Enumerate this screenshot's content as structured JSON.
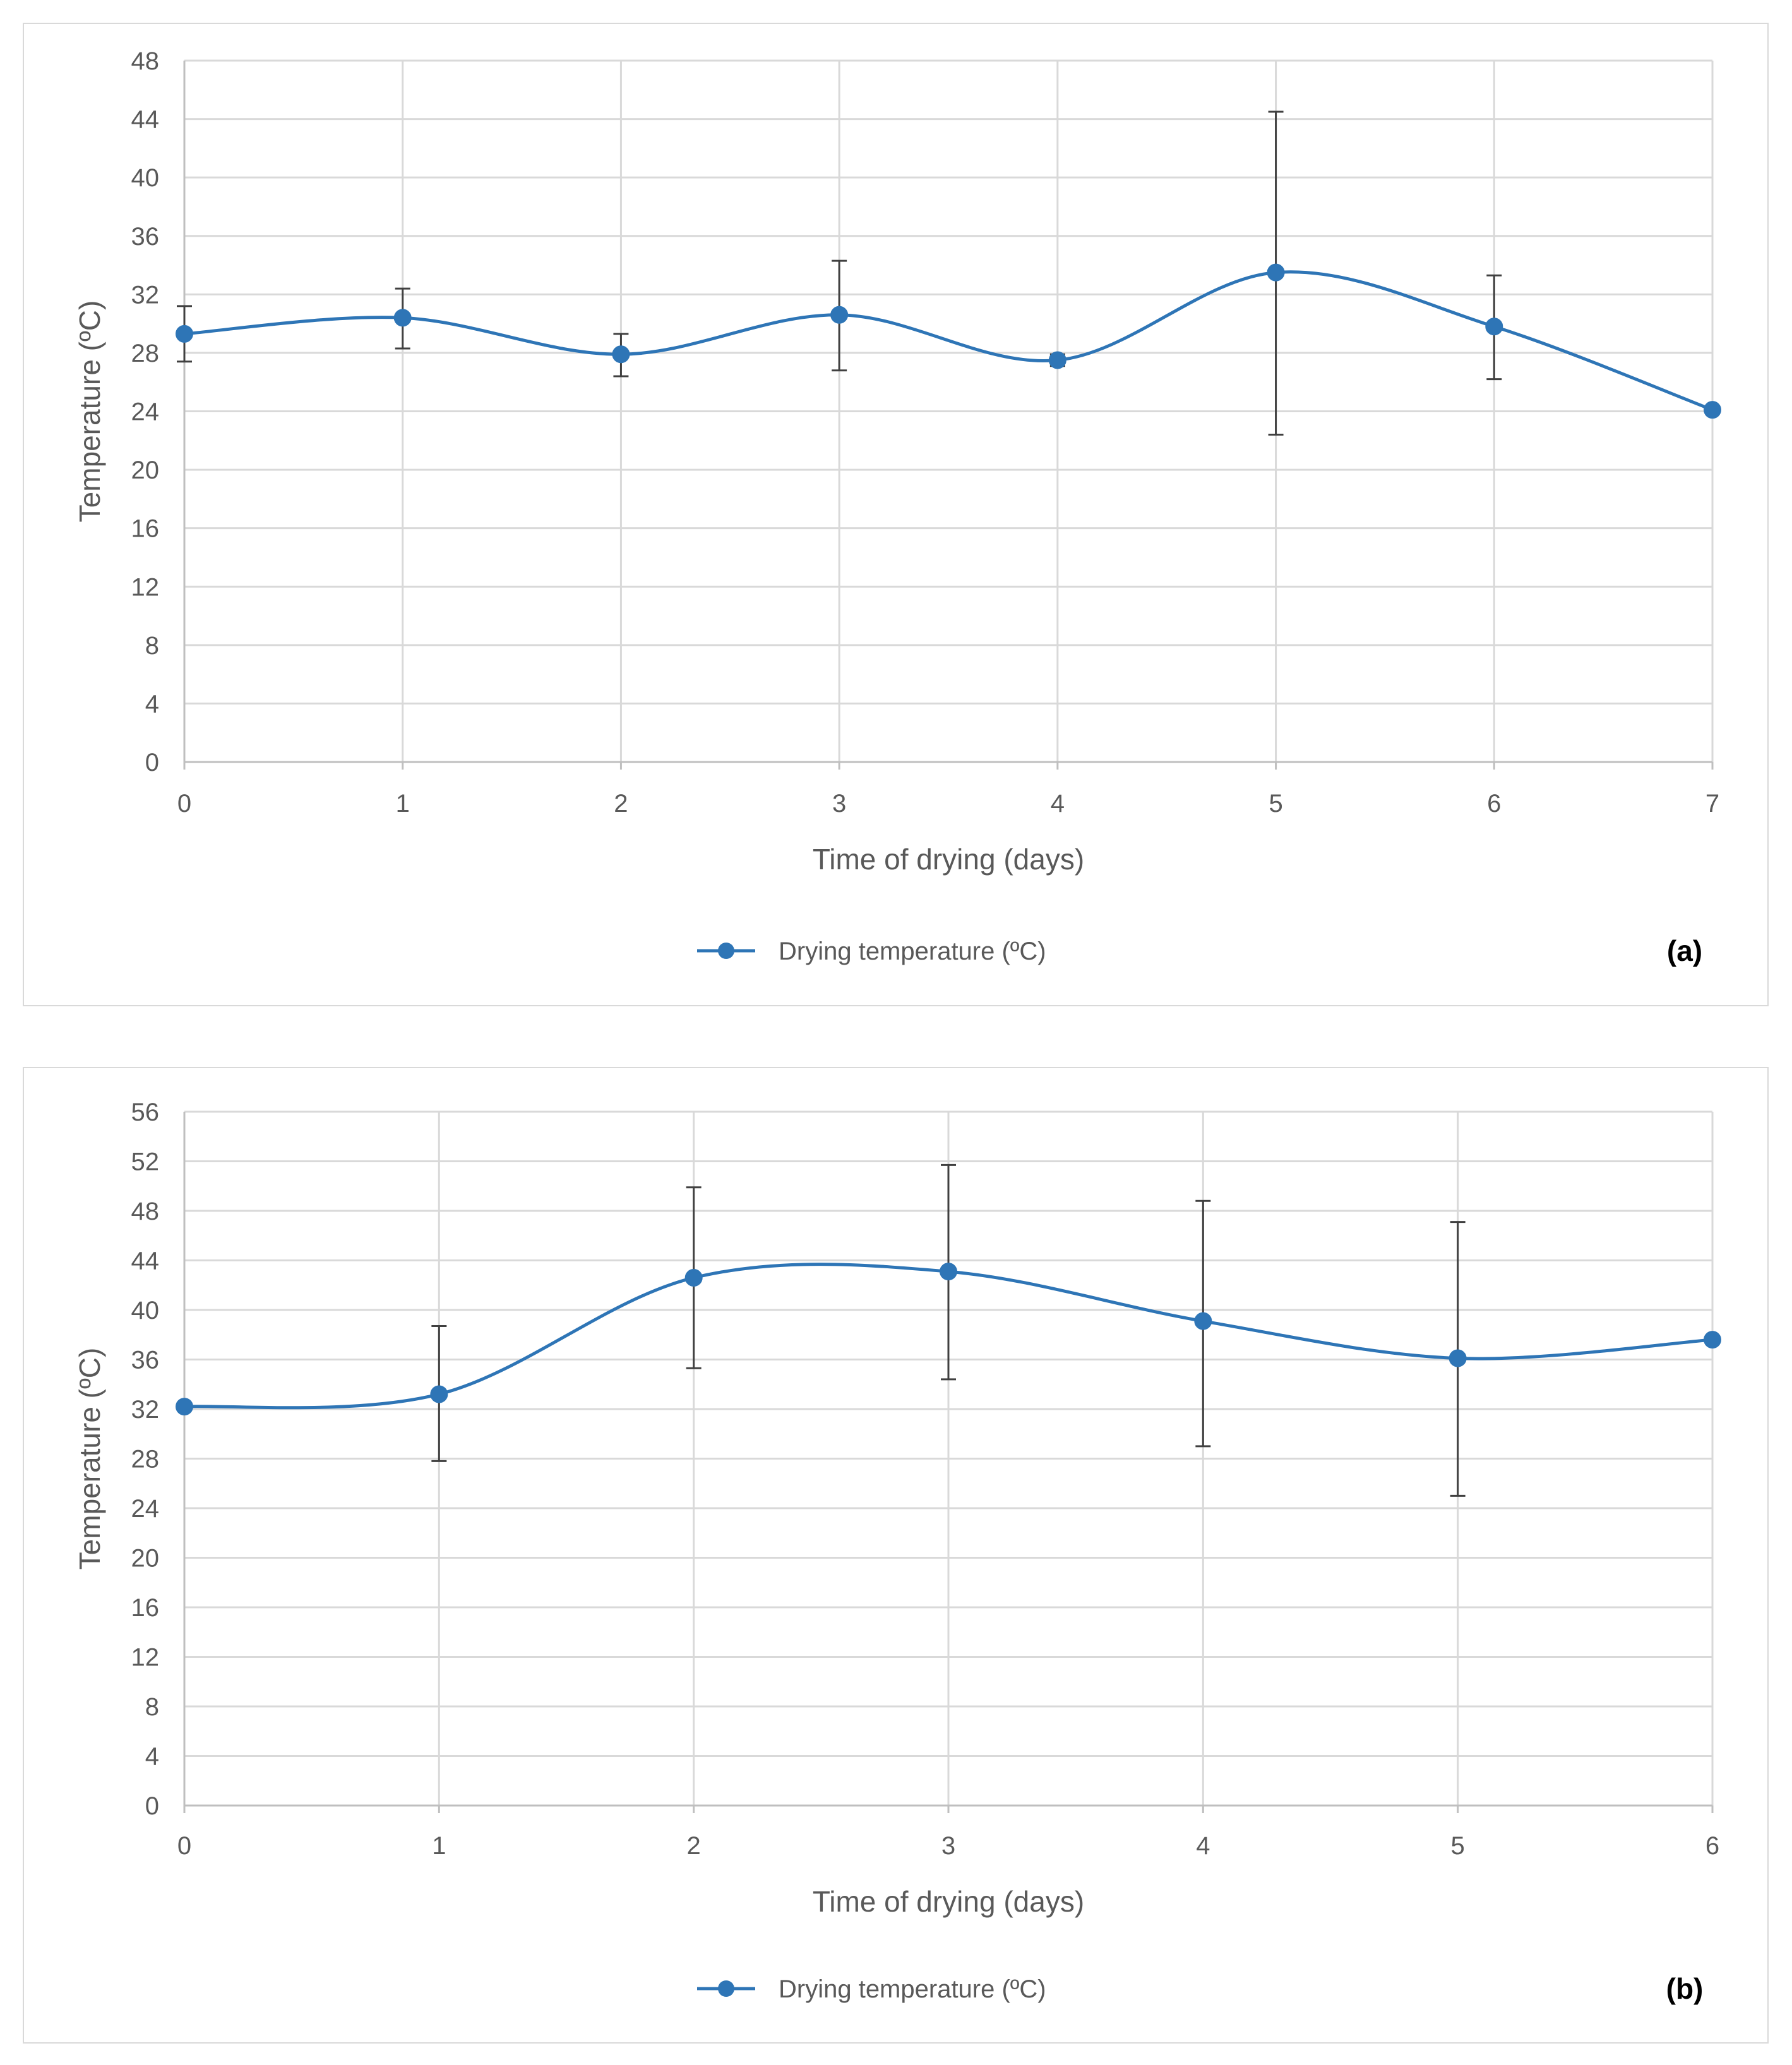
{
  "colors": {
    "series": "#2e75b6",
    "grid": "#d9d9d9",
    "axis": "#bfbfbf",
    "errorbar": "#404040",
    "text": "#595959"
  },
  "chart_data": [
    {
      "type": "line",
      "panel_label": "(a)",
      "xlabel": "Time of drying (days)",
      "ylabel": "Temperature (ºC)",
      "legend": "Drying temperature (ºC)",
      "legend_position": "bottom",
      "grid": true,
      "xlim": [
        0,
        7
      ],
      "ylim": [
        0,
        48
      ],
      "x_ticks": [
        0,
        1,
        2,
        3,
        4,
        5,
        6,
        7
      ],
      "y_ticks": [
        0,
        4,
        8,
        12,
        16,
        20,
        24,
        28,
        32,
        36,
        40,
        44,
        48
      ],
      "series": [
        {
          "name": "Drying temperature (ºC)",
          "x": [
            0,
            1,
            2,
            3,
            4,
            5,
            6,
            7
          ],
          "y": [
            29.3,
            30.4,
            27.9,
            30.6,
            27.5,
            33.5,
            29.8,
            24.1
          ],
          "error_low": [
            27.4,
            28.3,
            26.4,
            26.8,
            27.1,
            22.4,
            26.2,
            null
          ],
          "error_high": [
            31.2,
            32.4,
            29.3,
            34.3,
            27.9,
            44.5,
            33.3,
            null
          ]
        }
      ]
    },
    {
      "type": "line",
      "panel_label": "(b)",
      "xlabel": "Time of drying (days)",
      "ylabel": "Temperature (ºC)",
      "legend": "Drying temperature (ºC)",
      "legend_position": "bottom",
      "grid": true,
      "xlim": [
        0,
        6
      ],
      "ylim": [
        0,
        56
      ],
      "x_ticks": [
        0,
        1,
        2,
        3,
        4,
        5,
        6
      ],
      "y_ticks": [
        0,
        4,
        8,
        12,
        16,
        20,
        24,
        28,
        32,
        36,
        40,
        44,
        48,
        52,
        56
      ],
      "series": [
        {
          "name": "Drying temperature (ºC)",
          "x": [
            0,
            1,
            2,
            3,
            4,
            5,
            6
          ],
          "y": [
            32.2,
            33.2,
            42.6,
            43.1,
            39.1,
            36.1,
            37.6
          ],
          "error_low": [
            null,
            27.8,
            35.3,
            34.4,
            29.0,
            25.0,
            null
          ],
          "error_high": [
            null,
            38.7,
            49.9,
            51.7,
            48.8,
            47.1,
            null
          ]
        }
      ]
    }
  ]
}
